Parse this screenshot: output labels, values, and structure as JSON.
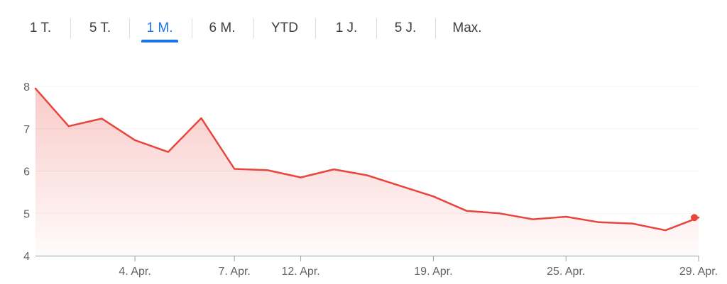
{
  "range_tabs": [
    {
      "label": "1 T.",
      "active": false
    },
    {
      "label": "5 T.",
      "active": false
    },
    {
      "label": "1 M.",
      "active": true
    },
    {
      "label": "6 M.",
      "active": false
    },
    {
      "label": "YTD",
      "active": false
    },
    {
      "label": "1 J.",
      "active": false
    },
    {
      "label": "5 J.",
      "active": false
    },
    {
      "label": "Max.",
      "active": false
    }
  ],
  "colors": {
    "line": "#e8453c",
    "active_tab": "#1a73e8",
    "grid": "#f1f3f4",
    "axis": "#9aa0a6"
  },
  "chart_data": {
    "type": "area",
    "x_tick_labels": [
      "4. Apr.",
      "7. Apr.",
      "12. Apr.",
      "19. Apr.",
      "25. Apr.",
      "29. Apr."
    ],
    "y_ticks": [
      4,
      5,
      6,
      7,
      8
    ],
    "ylim": [
      4,
      8
    ],
    "grid": true,
    "series": [
      {
        "values": [
          7.95,
          7.06,
          7.24,
          6.73,
          6.45,
          7.25,
          6.05,
          6.02,
          5.85,
          6.04,
          5.9,
          5.65,
          5.4,
          5.06,
          5.0,
          4.86,
          4.92,
          4.79,
          4.76,
          4.6,
          4.9
        ]
      }
    ],
    "tick_positions": [
      3,
      6,
      8,
      12,
      16,
      20
    ]
  }
}
